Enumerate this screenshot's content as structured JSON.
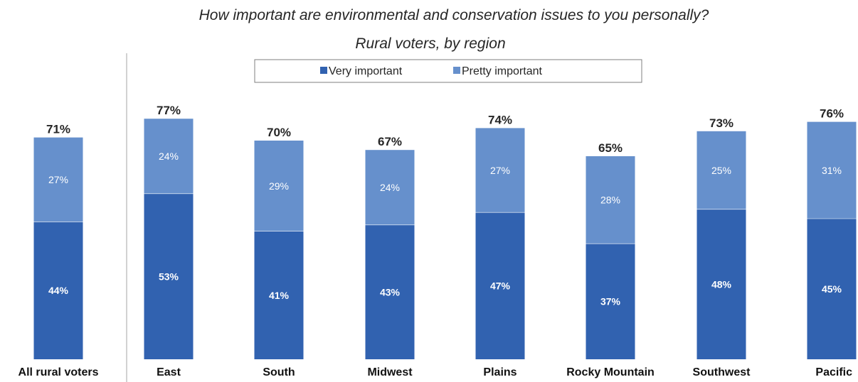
{
  "chart_data": {
    "type": "bar",
    "stacked": true,
    "title": "How important are environmental and conservation issues to you personally?",
    "subtitle": "Rural voters, by region",
    "legend_position": "top",
    "categories": [
      "All rural voters",
      "East",
      "South",
      "Midwest",
      "Plains",
      "Rocky Mountain",
      "Southwest",
      "Pacific"
    ],
    "series": [
      {
        "name": "Very important",
        "color": "#3162b0",
        "values": [
          44,
          53,
          41,
          43,
          47,
          37,
          48,
          45
        ],
        "labels": [
          "44%",
          "53%",
          "41%",
          "43%",
          "47%",
          "37%",
          "48%",
          "45%"
        ]
      },
      {
        "name": "Pretty important",
        "color": "#6690cc",
        "values": [
          27,
          24,
          29,
          24,
          27,
          28,
          25,
          31
        ],
        "labels": [
          "27%",
          "24%",
          "29%",
          "24%",
          "27%",
          "28%",
          "25%",
          "31%"
        ]
      }
    ],
    "totals": [
      71,
      77,
      70,
      67,
      74,
      65,
      73,
      76
    ],
    "total_labels": [
      "71%",
      "77%",
      "70%",
      "67%",
      "74%",
      "65%",
      "73%",
      "76%"
    ],
    "ylim": [
      0,
      80
    ],
    "grid": false
  }
}
